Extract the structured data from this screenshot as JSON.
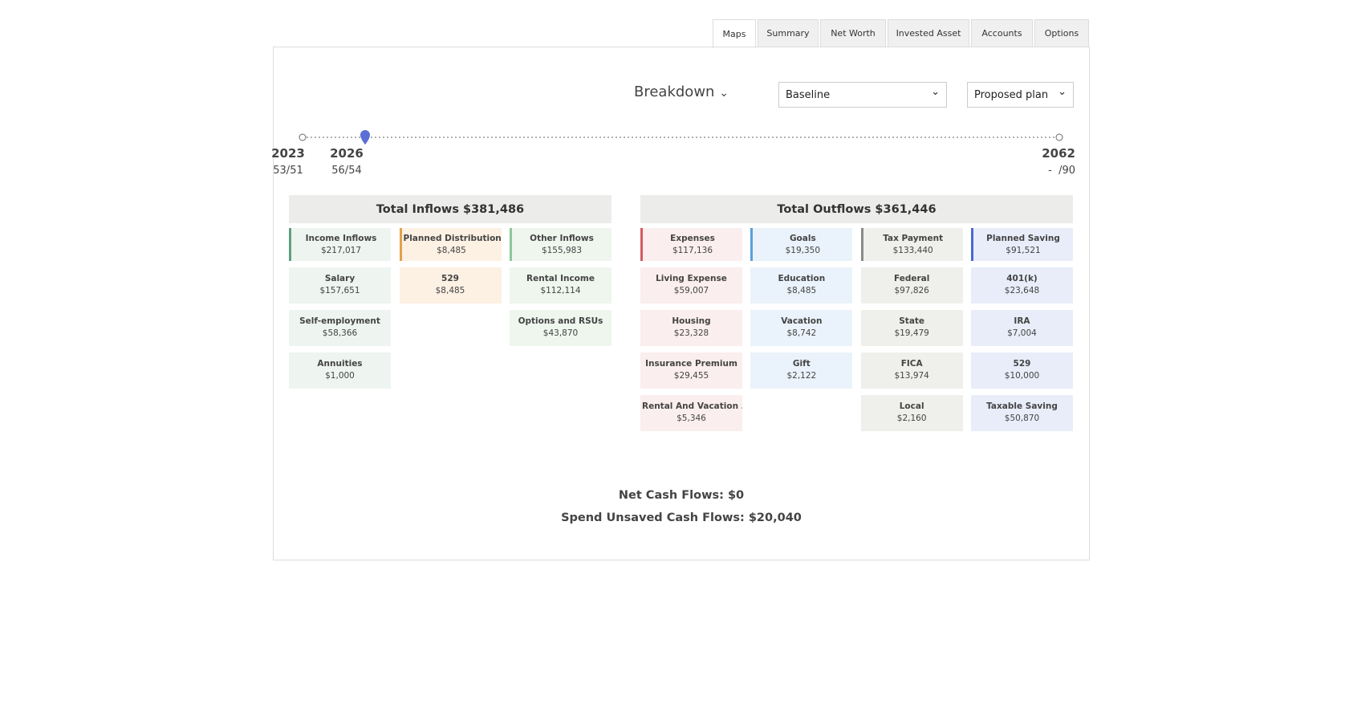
{
  "tabs": [
    "Maps",
    "Summary",
    "Net Worth",
    "Invested Asset",
    "Accounts",
    "Options"
  ],
  "controls": {
    "breakdown": "Breakdown",
    "scenario": "Baseline",
    "plan": "Proposed plan"
  },
  "timeline": [
    {
      "year": "2023",
      "ages": "53/51"
    },
    {
      "year": "2026",
      "ages": "56/54"
    },
    {
      "year": "2062",
      "ages": "-  /90"
    }
  ],
  "inflows": {
    "title": "Total Inflows $381,486",
    "columns": [
      {
        "title": "Income Inflows",
        "amount": "$217,017",
        "items": [
          {
            "label": "Salary",
            "amount": "$157,651"
          },
          {
            "label": "Self-employment",
            "amount": "$58,366"
          },
          {
            "label": "Annuities",
            "amount": "$1,000"
          }
        ]
      },
      {
        "title": "Planned Distribution",
        "amount": "$8,485",
        "items": [
          {
            "label": "529",
            "amount": "$8,485"
          }
        ]
      },
      {
        "title": "Other Inflows",
        "amount": "$155,983",
        "items": [
          {
            "label": "Rental Income",
            "amount": "$112,114"
          },
          {
            "label": "Options and RSUs",
            "amount": "$43,870"
          }
        ]
      }
    ]
  },
  "outflows": {
    "title": "Total Outflows $361,446",
    "columns": [
      {
        "title": "Expenses",
        "amount": "$117,136",
        "items": [
          {
            "label": "Living Expense",
            "amount": "$59,007"
          },
          {
            "label": "Housing",
            "amount": "$23,328"
          },
          {
            "label": "Insurance Premium",
            "amount": "$29,455"
          },
          {
            "label": "Rental And Vacation …",
            "amount": "$5,346"
          }
        ]
      },
      {
        "title": "Goals",
        "amount": "$19,350",
        "items": [
          {
            "label": "Education",
            "amount": "$8,485"
          },
          {
            "label": "Vacation",
            "amount": "$8,742"
          },
          {
            "label": "Gift",
            "amount": "$2,122"
          }
        ]
      },
      {
        "title": "Tax Payment",
        "amount": "$133,440",
        "items": [
          {
            "label": "Federal",
            "amount": "$97,826"
          },
          {
            "label": "State",
            "amount": "$19,479"
          },
          {
            "label": "FICA",
            "amount": "$13,974"
          },
          {
            "label": "Local",
            "amount": "$2,160"
          }
        ]
      },
      {
        "title": "Planned Saving",
        "amount": "$91,521",
        "items": [
          {
            "label": "401(k)",
            "amount": "$23,648"
          },
          {
            "label": "IRA",
            "amount": "$7,004"
          },
          {
            "label": "529",
            "amount": "$10,000"
          },
          {
            "label": "Taxable Saving",
            "amount": "$50,870"
          }
        ]
      }
    ]
  },
  "footer": {
    "net": "Net Cash Flows: $0",
    "spend": "Spend Unsaved Cash Flows: $20,040"
  }
}
